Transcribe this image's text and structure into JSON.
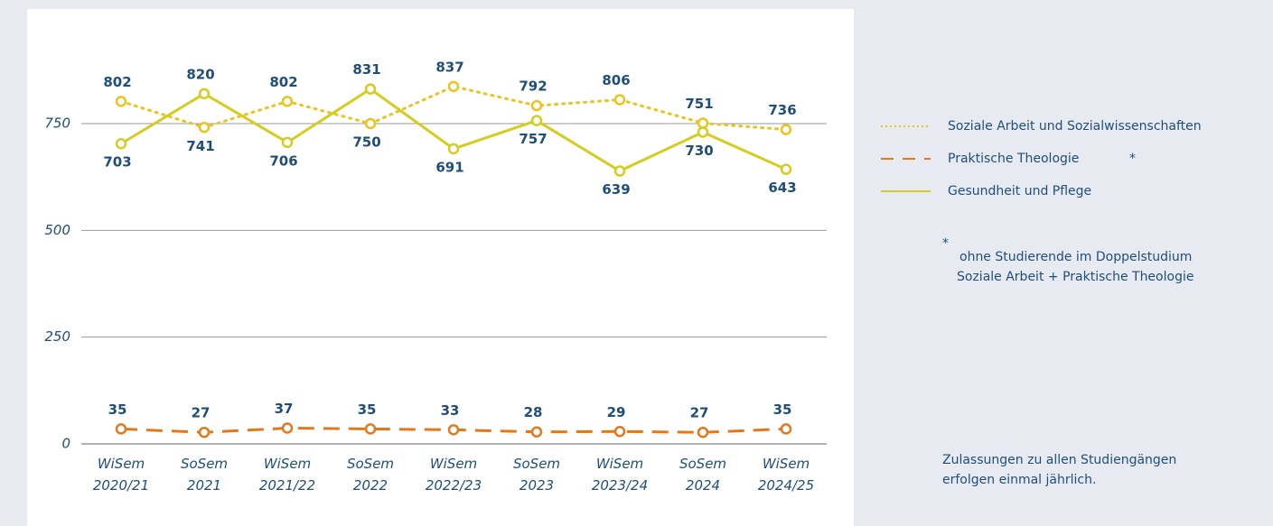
{
  "chart_data": {
    "type": "line",
    "categories": [
      "WiSem 2020/21",
      "SoSem 2021",
      "WiSem 2021/22",
      "SoSem 2022",
      "WiSem 2022/23",
      "SoSem 2023",
      "WiSem 2023/24",
      "SoSem 2024",
      "WiSem 2024/25"
    ],
    "series": [
      {
        "name": "Soziale Arbeit und Sozialwissenschaften",
        "color": "#ecc31c",
        "style": "dotted",
        "values": [
          802,
          741,
          802,
          750,
          837,
          792,
          806,
          751,
          736
        ]
      },
      {
        "name": "Praktische Theologie",
        "color": "#e2781c",
        "style": "dashed",
        "values": [
          35,
          27,
          37,
          35,
          33,
          28,
          29,
          27,
          35
        ],
        "legend_marker": "*"
      },
      {
        "name": "Gesundheit und Pflege",
        "color": "#d3cd1f",
        "style": "solid",
        "values": [
          703,
          820,
          706,
          831,
          691,
          757,
          639,
          730,
          643
        ]
      }
    ],
    "ylim": [
      0,
      900
    ],
    "yticks": [
      0,
      250,
      500,
      750
    ],
    "grid": true,
    "footnote": {
      "marker": "*",
      "lines": [
        "ohne Studierende im Doppelstudium",
        "Soziale Arbeit + Praktische Theologie"
      ]
    },
    "note": [
      "Zulassungen zu allen Studiengängen",
      "erfolgen einmal jährlich."
    ]
  }
}
